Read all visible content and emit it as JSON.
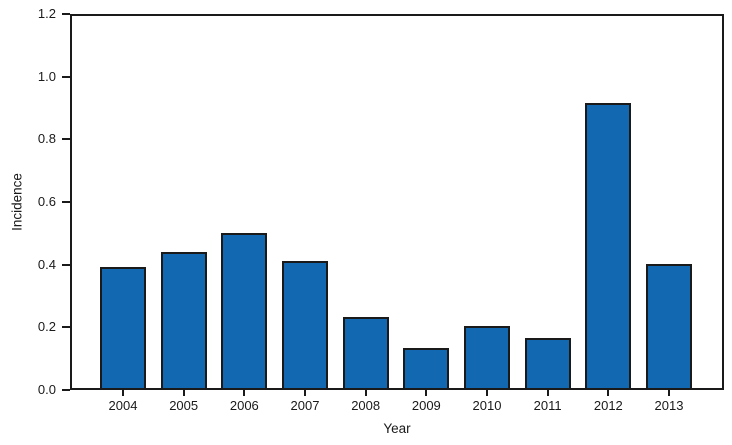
{
  "chart_data": {
    "type": "bar",
    "title": "",
    "xlabel": "Year",
    "ylabel": "Incidence",
    "categories": [
      "2004",
      "2005",
      "2006",
      "2007",
      "2008",
      "2009",
      "2010",
      "2011",
      "2012",
      "2013"
    ],
    "values": [
      0.39,
      0.44,
      0.5,
      0.41,
      0.23,
      0.13,
      0.2,
      0.16,
      0.92,
      0.4
    ],
    "ylim": [
      0,
      1.2
    ],
    "yticks": [
      0.0,
      0.2,
      0.4,
      0.6,
      0.8,
      1.0,
      1.2
    ],
    "ytick_labels": [
      "0.0",
      "0.2",
      "0.4",
      "0.6",
      "0.8",
      "1.0",
      "1.2"
    ],
    "grid": false,
    "legend": "none",
    "frame": "full-box",
    "colors": {
      "bar_fill": "#1268b1",
      "bar_border": "#1a1a1a",
      "axis": "#1a1a1a",
      "text": "#1a1a1a",
      "background": "#ffffff"
    }
  }
}
